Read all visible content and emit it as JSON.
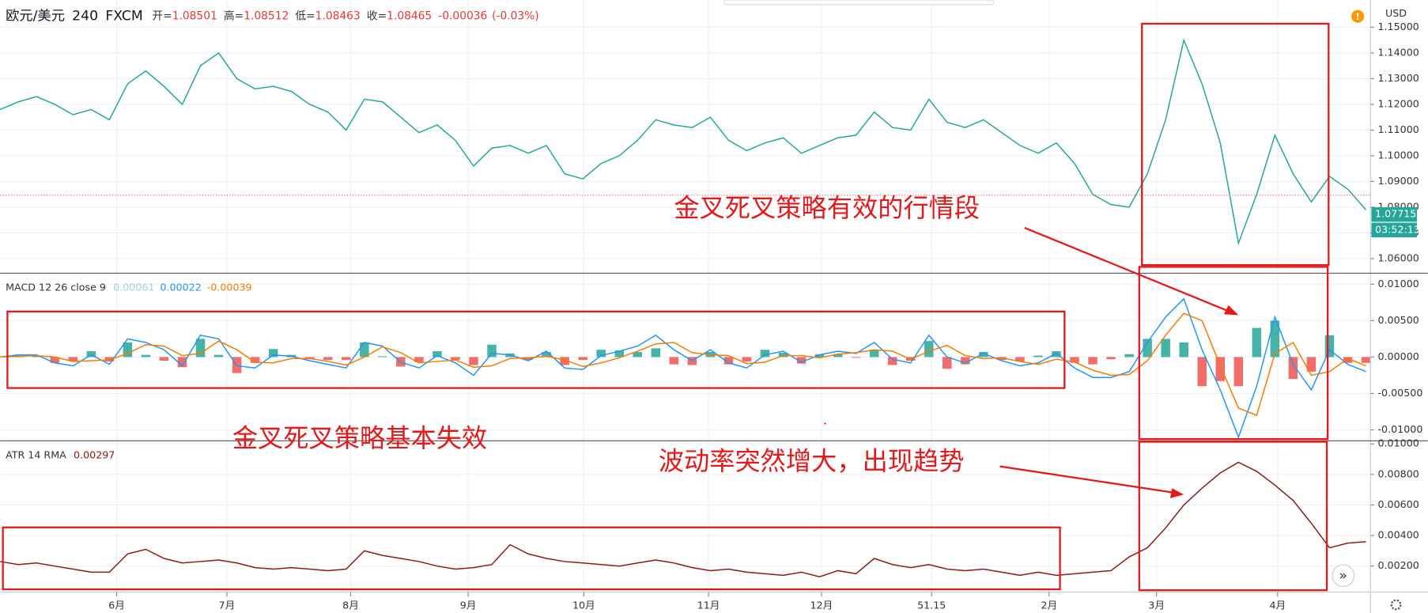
{
  "header": {
    "symbol": "欧元/美元",
    "interval": "240",
    "exchange": "FXCM",
    "ohlc": [
      {
        "label": "开=",
        "value": 1.08501
      },
      {
        "label": "高=",
        "value": 1.08512
      },
      {
        "label": "低=",
        "value": 1.08463
      },
      {
        "label": "收=",
        "value": 1.08465
      }
    ],
    "change": -0.00036,
    "change_pct": "(-0.03%)"
  },
  "currency": "USD",
  "x_axis": {
    "x": [
      0,
      1,
      2,
      3,
      4,
      5,
      6,
      7,
      8,
      9,
      10,
      11,
      12,
      13,
      14,
      15,
      16,
      17,
      18,
      19,
      20,
      21,
      22,
      23,
      24,
      25,
      26,
      27,
      28,
      29,
      30,
      31,
      32,
      33,
      34,
      35,
      36,
      37,
      38,
      39,
      40,
      41,
      42,
      43,
      44,
      45,
      46,
      47,
      48,
      49,
      50,
      51,
      52,
      53,
      54,
      55,
      56,
      57,
      58,
      59,
      60,
      61,
      62,
      63,
      64,
      65,
      66,
      67,
      68,
      69,
      70,
      71,
      72,
      73,
      74,
      75
    ],
    "xlim": [
      0,
      75.25
    ],
    "xticks": [
      {
        "value": 6.4,
        "label": "6月"
      },
      {
        "value": 12.45,
        "label": "7月"
      },
      {
        "value": 19.25,
        "label": "8月"
      },
      {
        "value": 25.7,
        "label": "9月"
      },
      {
        "value": 32.05,
        "label": "10月"
      },
      {
        "value": 38.9,
        "label": "11月"
      },
      {
        "value": 45.1,
        "label": "12月"
      },
      51.15,
      {
        "value": 57.6,
        "label": "2月"
      },
      {
        "value": 63.5,
        "label": "3月"
      },
      {
        "value": 70.15,
        "label": "4月"
      }
    ]
  },
  "chart_data": [
    {
      "type": "line",
      "color": "#26a69a",
      "values": [
        1.118,
        1.121,
        1.123,
        1.12,
        1.116,
        1.118,
        1.114,
        1.128,
        1.133,
        1.127,
        1.12,
        1.135,
        1.14,
        1.13,
        1.126,
        1.127,
        1.125,
        1.12,
        1.117,
        1.11,
        1.122,
        1.121,
        1.115,
        1.109,
        1.112,
        1.106,
        1.096,
        1.103,
        1.104,
        1.101,
        1.104,
        1.093,
        1.091,
        1.097,
        1.1,
        1.106,
        1.114,
        1.112,
        1.111,
        1.115,
        1.106,
        1.102,
        1.105,
        1.107,
        1.101,
        1.104,
        1.107,
        1.108,
        1.117,
        1.111,
        1.11,
        1.122,
        1.113,
        1.111,
        1.114,
        1.109,
        1.104,
        1.101,
        1.105,
        1.097,
        1.085,
        1.081,
        1.08,
        1.093,
        1.114,
        1.145,
        1.128,
        1.105,
        1.066,
        1.085,
        1.108,
        1.093,
        1.082,
        1.092,
        1.087,
        1.079
      ],
      "ylim": [
        1.0543,
        1.1606
      ],
      "yticks": [
        {
          "value": 1.06,
          "label": "1.06000"
        },
        {
          "value": 1.07,
          "label": "1.07000"
        },
        {
          "value": 1.08,
          "label": "1.08000"
        },
        {
          "value": 1.09,
          "label": "1.09000"
        },
        {
          "value": 1.1,
          "label": "1.10000"
        },
        {
          "value": 1.11,
          "label": "1.11000"
        },
        {
          "value": 1.12,
          "label": "1.12000"
        },
        {
          "value": 1.13,
          "label": "1.13000"
        },
        {
          "value": 1.14,
          "label": "1.14000"
        },
        {
          "value": 1.15,
          "label": "1.15000"
        }
      ],
      "price_label": 1.07715,
      "countdown": "03:52:13"
    },
    {
      "type": "macd",
      "title": "MACD 12 26 close 9",
      "legend_values": [
        {
          "value": 0.00061,
          "color": "#9fd4d0"
        },
        {
          "value": 0.00022,
          "color": "#2196f3"
        },
        {
          "value": -0.00039,
          "color": "#f57c00"
        }
      ],
      "histogram": {
        "pos_color": "#26a69a",
        "neg_color": "#ef5350",
        "values": [
          0,
          0.0002,
          0.0001,
          -0.0008,
          -0.0006,
          0.0008,
          -0.0006,
          0.002,
          0.0003,
          -0.0005,
          -0.0014,
          0.0025,
          0.0003,
          -0.0022,
          -0.0008,
          0.0011,
          0.0003,
          -0.0003,
          -0.0004,
          -0.0004,
          0.002,
          0.0001,
          -0.0013,
          -0.0007,
          0.0008,
          -0.0004,
          -0.0011,
          0.0017,
          0.0005,
          -0.0004,
          0.0007,
          -0.0011,
          -0.0004,
          0.001,
          0.0009,
          0.0007,
          0.0012,
          -0.001,
          -0.0011,
          0.0007,
          -0.001,
          -0.0006,
          0.001,
          0.0006,
          -0.0009,
          0.0004,
          0.0004,
          -0.0001,
          0.001,
          -0.0011,
          -0.0005,
          0.0022,
          -0.0016,
          -0.001,
          0.0007,
          -0.0004,
          -0.0006,
          0.0002,
          0.0008,
          -0.0008,
          -0.001,
          -0.0003,
          0.0004,
          0.0025,
          0.0025,
          0.002,
          -0.004,
          -0.0033,
          -0.004,
          0.004,
          0.005,
          -0.003,
          -0.002,
          0.003,
          -0.0008,
          -0.0008
        ]
      },
      "series": [
        {
          "color": "#2196f3",
          "values": [
            0,
            0.0003,
            0.0003,
            -0.0008,
            -0.0012,
            0.0003,
            -0.001,
            0.0025,
            0.002,
            0.001,
            -0.0012,
            0.003,
            0.0025,
            -0.0012,
            -0.0015,
            0.0003,
            0.0001,
            -0.0005,
            -0.001,
            -0.0015,
            0.002,
            0.0015,
            -0.0007,
            -0.0015,
            0.0002,
            -0.0008,
            -0.0025,
            0.0005,
            0.0003,
            -0.0005,
            0.0008,
            -0.0015,
            -0.0017,
            0.0002,
            0.0008,
            0.0015,
            0.003,
            0.001,
            -0.0005,
            0.001,
            -0.0008,
            -0.0015,
            0.0003,
            0.0008,
            -0.0007,
            0.0003,
            0.0008,
            0.0005,
            0.002,
            -0.0003,
            -0.0008,
            0.003,
            0,
            -0.0008,
            0.0005,
            -0.0005,
            -0.0012,
            -0.0008,
            0.0005,
            -0.0015,
            -0.0028,
            -0.0028,
            -0.002,
            0.002,
            0.0055,
            0.008,
            0.001,
            -0.0045,
            -0.011,
            -0.004,
            0.0055,
            -0.001,
            -0.0045,
            0.001,
            -0.001,
            -0.002
          ]
        },
        {
          "color": "#f57c00",
          "values": [
            0,
            0.0001,
            0.0002,
            0,
            -0.0006,
            -0.0005,
            -0.0004,
            0.0005,
            0.0017,
            0.0015,
            0.0002,
            0.0005,
            0.0022,
            0.001,
            -0.0007,
            -0.0008,
            -0.0002,
            -0.0002,
            -0.0006,
            -0.0011,
            0,
            0.0014,
            0.0006,
            -0.0008,
            -0.0006,
            -0.0004,
            -0.0014,
            -0.0012,
            -0.0002,
            -0.0001,
            0.0001,
            -0.0004,
            -0.0013,
            -0.0008,
            -0.0001,
            0.0008,
            0.0018,
            0.002,
            0.0006,
            0.0003,
            0.0002,
            -0.0009,
            -0.0007,
            0.0002,
            0.0002,
            -0.0001,
            0.0004,
            0.0006,
            0.001,
            0.0008,
            -0.0003,
            0.0008,
            0.0016,
            0.0002,
            -0.0002,
            -0.0001,
            -0.0006,
            -0.001,
            -0.0003,
            -0.0007,
            -0.0018,
            -0.0025,
            -0.0024,
            -0.0005,
            0.003,
            0.006,
            0.005,
            -0.0012,
            -0.007,
            -0.008,
            0.0005,
            0.002,
            -0.0025,
            -0.002,
            -0.0002,
            -0.0012
          ]
        }
      ],
      "ylim": [
        -0.0115,
        0.0115
      ],
      "yticks": [
        {
          "value": -0.01,
          "label": "-0.01000"
        },
        {
          "value": -0.005,
          "label": "-0.00500"
        },
        {
          "value": 0,
          "label": "0.00000"
        },
        {
          "value": 0.005,
          "label": "0.00500"
        },
        {
          "value": 0.01,
          "label": "0.01000"
        }
      ]
    },
    {
      "type": "line",
      "title": "ATR 14 RMA",
      "legend_value": 0.00297,
      "color": "#8b1a1a",
      "values": [
        0.0023,
        0.0021,
        0.0022,
        0.002,
        0.0018,
        0.0016,
        0.0016,
        0.0028,
        0.0031,
        0.0025,
        0.0022,
        0.0023,
        0.0024,
        0.0022,
        0.0019,
        0.0018,
        0.0019,
        0.0018,
        0.0017,
        0.0018,
        0.003,
        0.0027,
        0.0025,
        0.0023,
        0.002,
        0.0018,
        0.0019,
        0.0021,
        0.0034,
        0.0028,
        0.0025,
        0.0023,
        0.0022,
        0.0021,
        0.002,
        0.0022,
        0.0024,
        0.0022,
        0.0019,
        0.0017,
        0.0018,
        0.0016,
        0.0015,
        0.0014,
        0.0016,
        0.0013,
        0.0017,
        0.0015,
        0.0025,
        0.0021,
        0.0019,
        0.0021,
        0.0018,
        0.0017,
        0.0018,
        0.0016,
        0.0014,
        0.0016,
        0.0014,
        0.0015,
        0.0016,
        0.0017,
        0.0026,
        0.0032,
        0.0045,
        0.006,
        0.0071,
        0.0081,
        0.0088,
        0.0082,
        0.0073,
        0.0063,
        0.0048,
        0.0032,
        0.0035,
        0.0036
      ],
      "ylim": [
        0.0003,
        0.0102
      ],
      "yticks": [
        {
          "value": 0.002,
          "label": "0.00200"
        },
        {
          "value": 0.004,
          "label": "0.00400"
        },
        {
          "value": 0.006,
          "label": "0.00600"
        },
        {
          "value": 0.008,
          "label": "0.00800"
        },
        {
          "value": 0.01,
          "label": "0.01000"
        }
      ]
    }
  ],
  "annotations": {
    "effective": "金叉死叉策略有效的行情段",
    "failed": "金叉死叉策略基本失效",
    "volatility": "波动率突然增大，出现趋势"
  }
}
